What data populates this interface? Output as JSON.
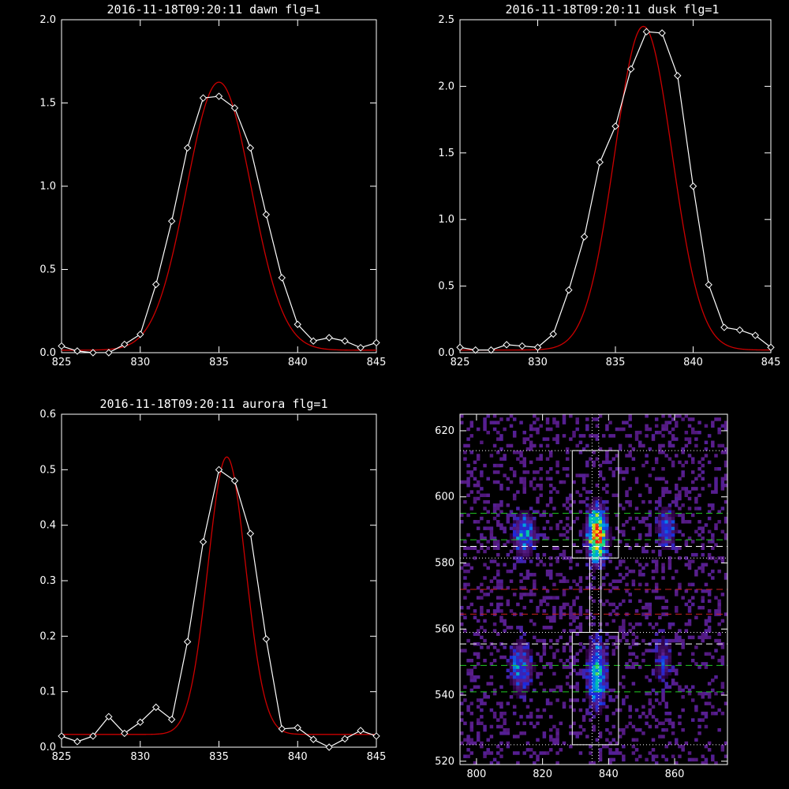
{
  "colors": {
    "background": "#000000",
    "axes": "#ffffff",
    "data": "#ffffff",
    "fit": "#cc0000",
    "green_line": "#22cc22",
    "red_line": "#cc2020"
  },
  "chart_data": [
    {
      "type": "line",
      "title": "2016-11-18T09:20:11 dawn flg=1",
      "xlim": [
        825,
        845
      ],
      "ylim": [
        0,
        2.0
      ],
      "xticks": [
        "825",
        "830",
        "835",
        "840",
        "845"
      ],
      "yticks": [
        "0.0",
        "0.5",
        "1.0",
        "1.5",
        "2.0"
      ],
      "series": [
        {
          "role": "data",
          "marker": "diamond",
          "x": [
            825,
            826,
            827,
            828,
            829,
            830,
            831,
            832,
            833,
            834,
            835,
            836,
            837,
            838,
            839,
            840,
            841,
            842,
            843,
            844,
            845
          ],
          "y": [
            0.04,
            0.01,
            0,
            0,
            0.05,
            0.11,
            0.41,
            0.79,
            1.23,
            1.53,
            1.54,
            1.47,
            1.23,
            0.83,
            0.45,
            0.17,
            0.07,
            0.09,
            0.07,
            0.03,
            0.06
          ]
        },
        {
          "role": "fit",
          "shape": "gaussian",
          "amplitude": 1.61,
          "center": 835.0,
          "sigma": 2.05,
          "offset": 0.015
        }
      ]
    },
    {
      "type": "line",
      "title": "2016-11-18T09:20:11 dusk flg=1",
      "xlim": [
        825,
        845
      ],
      "ylim": [
        0,
        2.5
      ],
      "xticks": [
        "825",
        "830",
        "835",
        "840",
        "845"
      ],
      "yticks": [
        "0.0",
        "0.5",
        "1.0",
        "1.5",
        "2.0",
        "2.5"
      ],
      "series": [
        {
          "role": "data",
          "marker": "diamond",
          "x": [
            825,
            826,
            827,
            828,
            829,
            830,
            831,
            832,
            833,
            834,
            835,
            836,
            837,
            838,
            839,
            840,
            841,
            842,
            843,
            844,
            845
          ],
          "y": [
            0.04,
            0.02,
            0.02,
            0.06,
            0.05,
            0.04,
            0.14,
            0.47,
            0.87,
            1.43,
            1.7,
            2.13,
            2.41,
            2.4,
            2.08,
            1.25,
            0.51,
            0.19,
            0.17,
            0.13,
            0.04
          ]
        },
        {
          "role": "fit",
          "shape": "gaussian",
          "amplitude": 2.43,
          "center": 836.8,
          "sigma": 1.85,
          "offset": 0.02
        }
      ]
    },
    {
      "type": "line",
      "title": "2016-11-18T09:20:11 aurora flg=1",
      "xlim": [
        825,
        845
      ],
      "ylim": [
        0,
        0.6
      ],
      "xticks": [
        "825",
        "830",
        "835",
        "840",
        "845"
      ],
      "yticks": [
        "0.0",
        "0.1",
        "0.2",
        "0.3",
        "0.4",
        "0.5",
        "0.6"
      ],
      "series": [
        {
          "role": "data",
          "marker": "diamond",
          "x": [
            825,
            826,
            827,
            828,
            829,
            830,
            831,
            832,
            833,
            834,
            835,
            836,
            837,
            838,
            839,
            840,
            841,
            842,
            843,
            844,
            845
          ],
          "y": [
            0.02,
            0.01,
            0.02,
            0.055,
            0.025,
            0.045,
            0.072,
            0.05,
            0.19,
            0.37,
            0.5,
            0.48,
            0.385,
            0.195,
            0.033,
            0.035,
            0.014,
            0,
            0.015,
            0.03,
            0.02
          ]
        },
        {
          "role": "fit",
          "shape": "gaussian",
          "amplitude": 0.5,
          "center": 835.5,
          "sigma": 1.2,
          "offset": 0.023
        }
      ]
    },
    {
      "type": "heatmap",
      "title": "",
      "xlim": [
        795,
        876
      ],
      "ylim": [
        519,
        625
      ],
      "xticks": [
        "800",
        "820",
        "840",
        "860"
      ],
      "yticks": [
        "520",
        "540",
        "560",
        "580",
        "600",
        "620"
      ],
      "blobs": [
        {
          "x": 836,
          "y": 588,
          "sx": 1.8,
          "sy": 5,
          "amp": 1.0
        },
        {
          "x": 836,
          "y": 546,
          "sx": 1.8,
          "sy": 6,
          "amp": 0.6
        },
        {
          "x": 814,
          "y": 588,
          "sx": 2.2,
          "sy": 4,
          "amp": 0.42
        },
        {
          "x": 813,
          "y": 548,
          "sx": 2.2,
          "sy": 5,
          "amp": 0.35
        },
        {
          "x": 857,
          "y": 590,
          "sx": 2,
          "sy": 4,
          "amp": 0.3
        },
        {
          "x": 856,
          "y": 550,
          "sx": 2,
          "sy": 5,
          "amp": 0.18
        }
      ],
      "boxes": [
        {
          "x0": 829,
          "x1": 843,
          "y0": 581.5,
          "y1": 614
        },
        {
          "x0": 829,
          "x1": 843,
          "y0": 525,
          "y1": 559
        },
        {
          "x0": 834.3,
          "x1": 837.7,
          "y0": 559,
          "y1": 581.5
        }
      ],
      "dotted_h": [
        614,
        581.5,
        559,
        525
      ],
      "dotted_v": [
        835,
        837
      ],
      "green_dash": [
        595,
        587,
        549,
        541
      ],
      "white_dash": [
        585,
        555.5
      ],
      "red_dash": [
        572,
        564.5
      ]
    }
  ]
}
